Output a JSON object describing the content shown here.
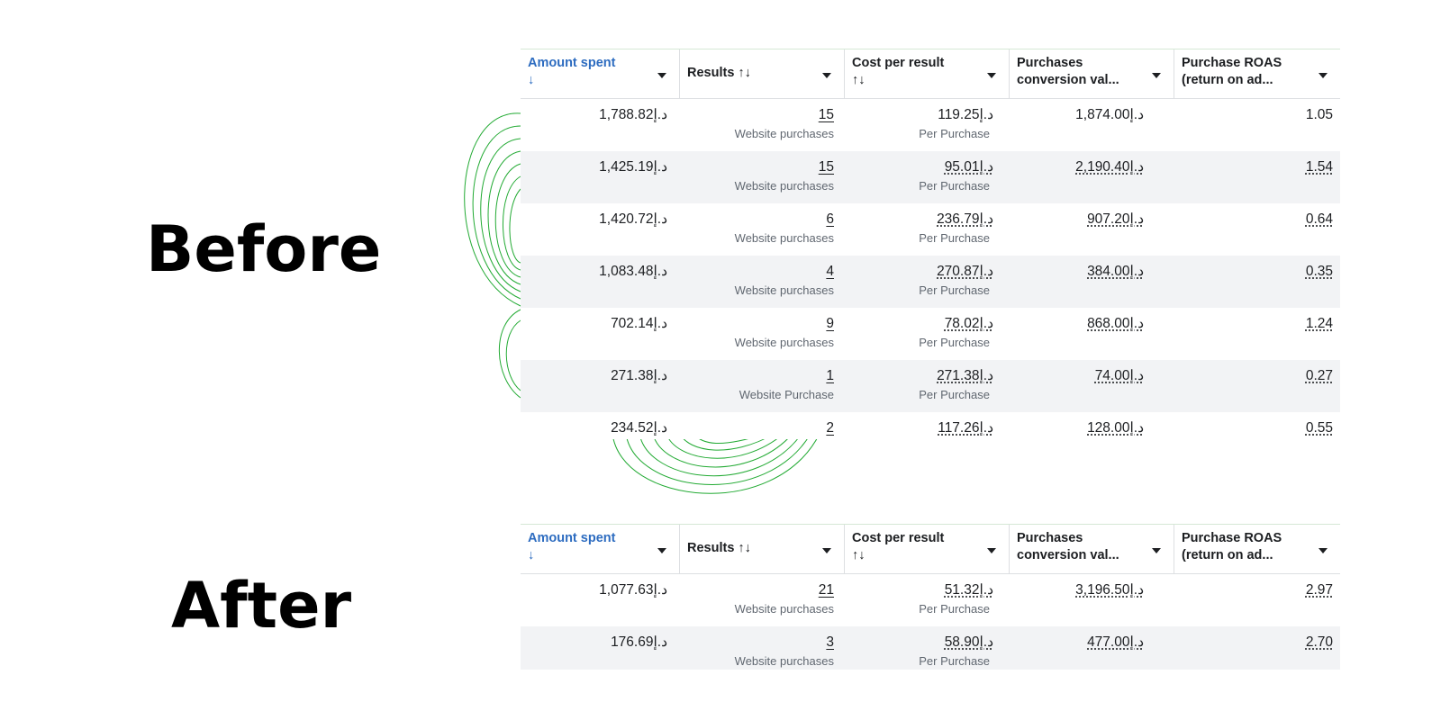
{
  "labels": {
    "before": "Before",
    "after": "After"
  },
  "headers": {
    "amount_spent": {
      "line1": "Amount spent",
      "line2": "↓"
    },
    "results": {
      "line1": "Results ↑↓"
    },
    "cost_per_result": {
      "line1": "Cost per result",
      "line2": "↑↓"
    },
    "purchases_value": {
      "line1": "Purchases",
      "line2": "conversion val..."
    },
    "purchase_roas": {
      "line1": "Purchase ROAS",
      "line2": "(return on ad..."
    }
  },
  "before": {
    "rows": [
      {
        "amount": "1,788.82د.إ",
        "results": "15",
        "results_sub": "Website purchases",
        "cost": "119.25د.إ",
        "cost_sub": "Per Purchase",
        "value": "1,874.00د.إ",
        "roas": "1.05"
      },
      {
        "amount": "1,425.19د.إ",
        "results": "15",
        "results_sub": "Website purchases",
        "cost": "95.01د.إ",
        "cost_sub": "Per Purchase",
        "value": "2,190.40د.إ",
        "roas": "1.54"
      },
      {
        "amount": "1,420.72د.إ",
        "results": "6",
        "results_sub": "Website purchases",
        "cost": "236.79د.إ",
        "cost_sub": "Per Purchase",
        "value": "907.20د.إ",
        "roas": "0.64"
      },
      {
        "amount": "1,083.48د.إ",
        "results": "4",
        "results_sub": "Website purchases",
        "cost": "270.87د.إ",
        "cost_sub": "Per Purchase",
        "value": "384.00د.إ",
        "roas": "0.35"
      },
      {
        "amount": "702.14د.إ",
        "results": "9",
        "results_sub": "Website purchases",
        "cost": "78.02د.إ",
        "cost_sub": "Per Purchase",
        "value": "868.00د.إ",
        "roas": "1.24"
      },
      {
        "amount": "271.38د.إ",
        "results": "1",
        "results_sub": "Website Purchase",
        "cost": "271.38د.إ",
        "cost_sub": "Per Purchase",
        "value": "74.00د.إ",
        "roas": "0.27"
      },
      {
        "amount": "234.52د.إ",
        "results": "2",
        "results_sub": "",
        "cost": "117.26د.إ",
        "cost_sub": "",
        "value": "128.00د.إ",
        "roas": "0.55"
      }
    ]
  },
  "after": {
    "rows": [
      {
        "amount": "1,077.63د.إ",
        "results": "21",
        "results_sub": "Website purchases",
        "cost": "51.32د.إ",
        "cost_sub": "Per Purchase",
        "value": "3,196.50د.إ",
        "roas": "2.97"
      },
      {
        "amount": "176.69د.إ",
        "results": "3",
        "results_sub": "Website purchases",
        "cost": "58.90د.إ",
        "cost_sub": "Per Purchase",
        "value": "477.00د.إ",
        "roas": "2.70"
      }
    ]
  },
  "colors": {
    "sorted_header": "#2d6cc0",
    "row_alt": "#f2f3f5",
    "deco_lines": "#22aa33"
  }
}
